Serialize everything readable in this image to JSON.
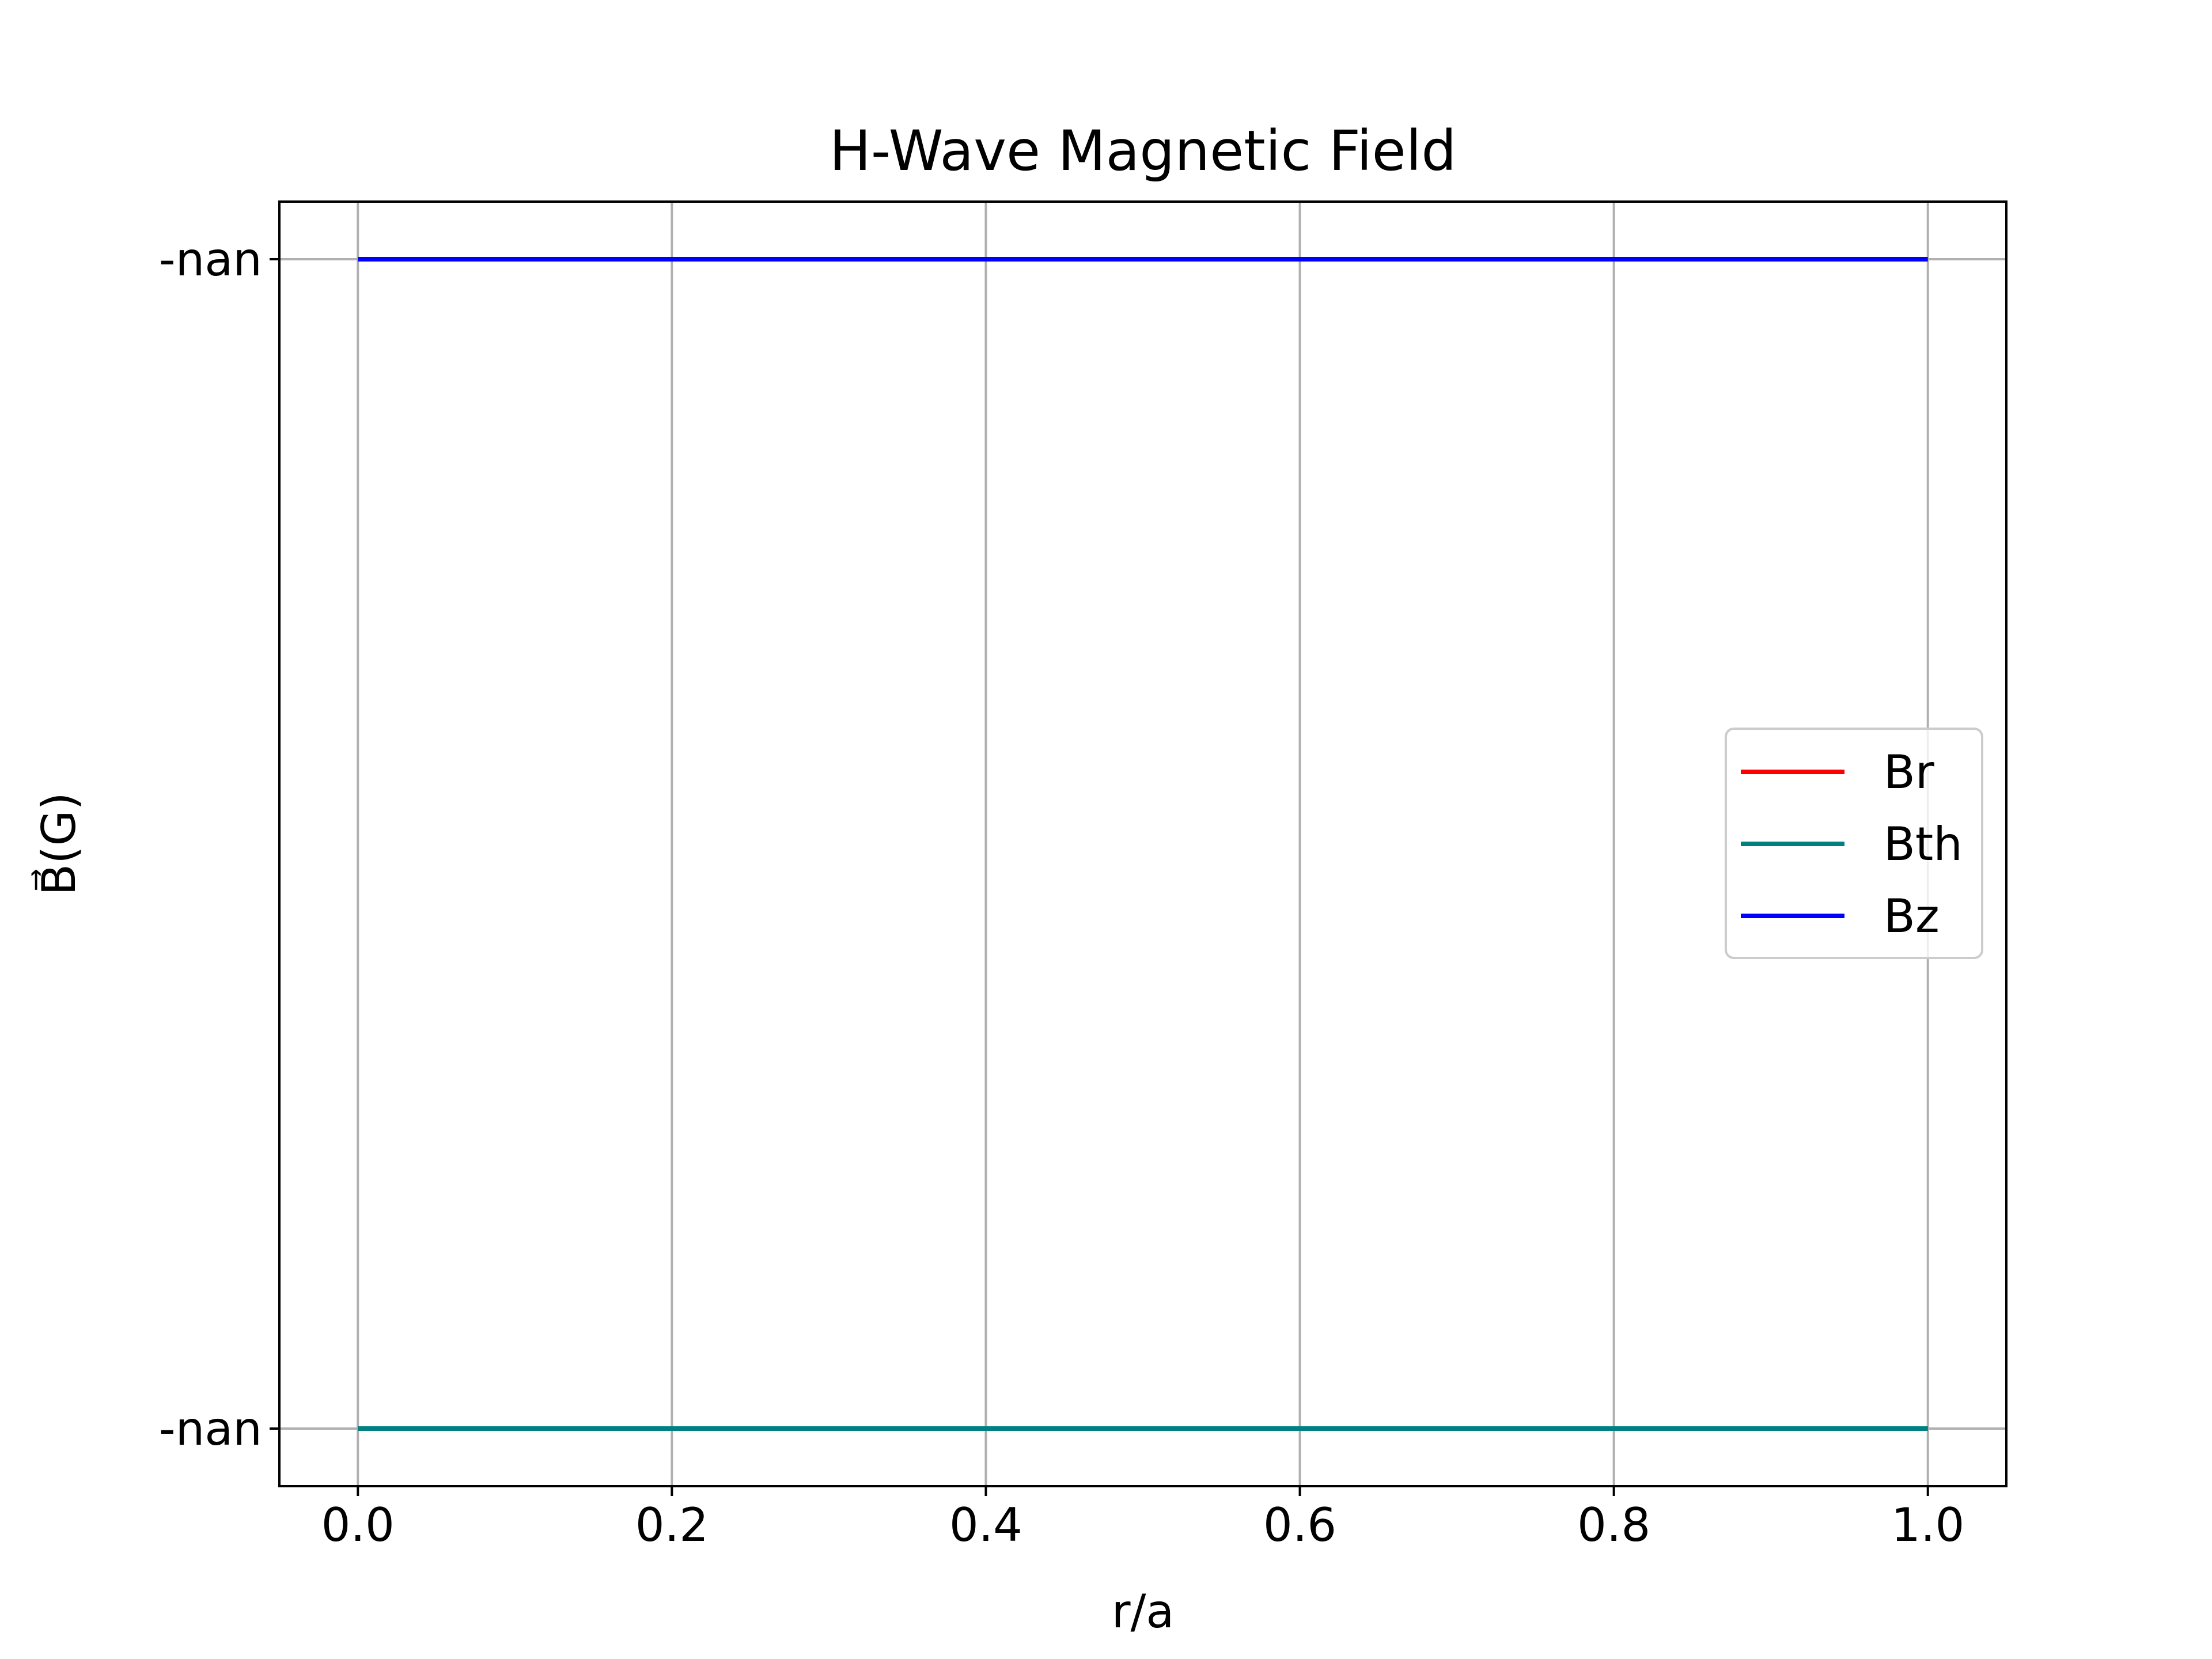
{
  "chart_data": {
    "type": "line",
    "title": "H-Wave Magnetic Field",
    "xlabel": "r/a",
    "ylabel": "B⃗(G)",
    "xlim": [
      -0.05,
      1.05
    ],
    "x_ticks": [
      "0.0",
      "0.2",
      "0.4",
      "0.6",
      "0.8",
      "1.0"
    ],
    "x_tick_values": [
      0.0,
      0.2,
      0.4,
      0.6,
      0.8,
      1.0
    ],
    "y_tick_labels": [
      "-nan ",
      "-nan"
    ],
    "grid": true,
    "legend_position": "center-right",
    "x": [
      0.0,
      1.0
    ],
    "series": [
      {
        "name": "Br",
        "color": "#ff0000",
        "level": "low",
        "values": [
          "-nan",
          "-nan"
        ]
      },
      {
        "name": "Bth",
        "color": "#008080",
        "level": "low",
        "values": [
          "-nan",
          "-nan"
        ]
      },
      {
        "name": "Bz",
        "color": "#0000ff",
        "level": "high",
        "values": [
          "-nan",
          "-nan"
        ]
      }
    ]
  }
}
